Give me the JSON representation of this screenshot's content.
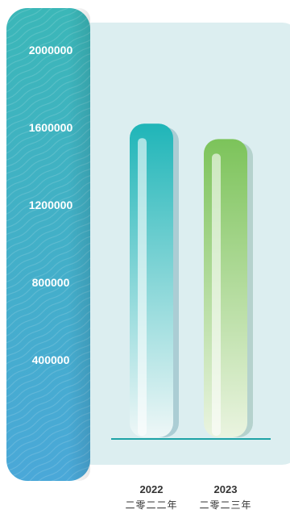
{
  "chart_data": {
    "type": "bar",
    "categories": [
      "2022",
      "2023"
    ],
    "category_sublabels": [
      "二零二二年",
      "二零二三年"
    ],
    "values": [
      1620000,
      1540000
    ],
    "y_ticks": [
      400000,
      800000,
      1200000,
      1600000,
      2000000
    ],
    "ylim": [
      0,
      2000000
    ],
    "grid": false,
    "bar_colors": [
      {
        "top": "#1fb5b8",
        "bottom": "#eef7f7",
        "shadow": "#8ab7c2"
      },
      {
        "top": "#7cc35a",
        "bottom": "#eaf4e0",
        "shadow": "#9bbfb5"
      }
    ],
    "colors": {
      "panel_background": "#dceef0",
      "axis_strip_top": "#3bb7b8",
      "axis_strip_bottom": "#4aa8d8",
      "baseline": "#1fa3a6"
    }
  }
}
